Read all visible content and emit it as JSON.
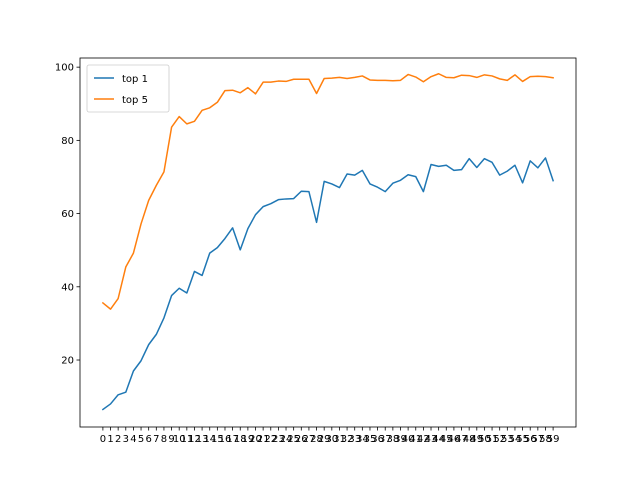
{
  "chart_data": {
    "type": "line",
    "title": "",
    "xlabel": "",
    "ylabel": "",
    "x": [
      0,
      1,
      2,
      3,
      4,
      5,
      6,
      7,
      8,
      9,
      10,
      11,
      12,
      13,
      14,
      15,
      16,
      17,
      18,
      19,
      20,
      21,
      22,
      23,
      24,
      25,
      26,
      27,
      28,
      29,
      30,
      31,
      32,
      33,
      34,
      35,
      36,
      37,
      38,
      39,
      40,
      41,
      42,
      43,
      44,
      45,
      46,
      47,
      48,
      49,
      50,
      51,
      52,
      53,
      54,
      55,
      56,
      57,
      58,
      59
    ],
    "x_tick_labels": [
      "0",
      "1",
      "2",
      "3",
      "4",
      "5",
      "6",
      "7",
      "8",
      "9",
      "10",
      "11",
      "12",
      "13",
      "14",
      "15",
      "16",
      "17",
      "18",
      "19",
      "20",
      "21",
      "22",
      "23",
      "24",
      "25",
      "26",
      "27",
      "28",
      "29",
      "30",
      "31",
      "32",
      "33",
      "34",
      "35",
      "36",
      "37",
      "38",
      "39",
      "40",
      "41",
      "42",
      "43",
      "44",
      "45",
      "46",
      "47",
      "48",
      "49",
      "50",
      "51",
      "52",
      "53",
      "54",
      "55",
      "56",
      "57",
      "58",
      "59"
    ],
    "xlim": [
      -3,
      62
    ],
    "ylim": [
      1.7,
      102.5
    ],
    "y_ticks": [
      20,
      40,
      60,
      80,
      100
    ],
    "grid": false,
    "legend": "top-left",
    "series": [
      {
        "name": "top 1",
        "color": "#1f77b4",
        "values": [
          6.5,
          8.0,
          10.5,
          11.2,
          17.0,
          19.8,
          24.2,
          27.0,
          31.5,
          37.6,
          39.6,
          38.3,
          44.2,
          43.1,
          49.2,
          50.7,
          53.2,
          56.1,
          50.1,
          55.9,
          59.7,
          61.9,
          62.7,
          63.8,
          64.0,
          64.1,
          66.1,
          66.0,
          57.6,
          68.8,
          68.1,
          67.1,
          70.8,
          70.5,
          71.8,
          68.1,
          67.2,
          66.0,
          68.3,
          69.1,
          70.6,
          70.1,
          66.0,
          73.4,
          72.9,
          73.2,
          71.8,
          72.0,
          75.0,
          72.6,
          75.0,
          74.0,
          70.5,
          71.6,
          73.2,
          68.4,
          74.4,
          72.5,
          75.2,
          69.0
        ]
      },
      {
        "name": "top 5",
        "color": "#ff7f0e",
        "values": [
          35.6,
          33.9,
          36.8,
          45.4,
          49.2,
          57.2,
          63.6,
          67.7,
          71.4,
          83.6,
          86.5,
          84.5,
          85.2,
          88.2,
          88.9,
          90.4,
          93.6,
          93.7,
          93.0,
          94.4,
          92.7,
          95.9,
          95.9,
          96.2,
          96.1,
          96.7,
          96.7,
          96.7,
          92.8,
          96.9,
          97.0,
          97.2,
          96.9,
          97.2,
          97.6,
          96.5,
          96.4,
          96.4,
          96.3,
          96.4,
          98.0,
          97.3,
          96.0,
          97.4,
          98.2,
          97.2,
          97.1,
          97.8,
          97.7,
          97.2,
          97.9,
          97.6,
          96.8,
          96.4,
          97.9,
          96.1,
          97.4,
          97.5,
          97.4,
          97.1
        ]
      }
    ]
  }
}
